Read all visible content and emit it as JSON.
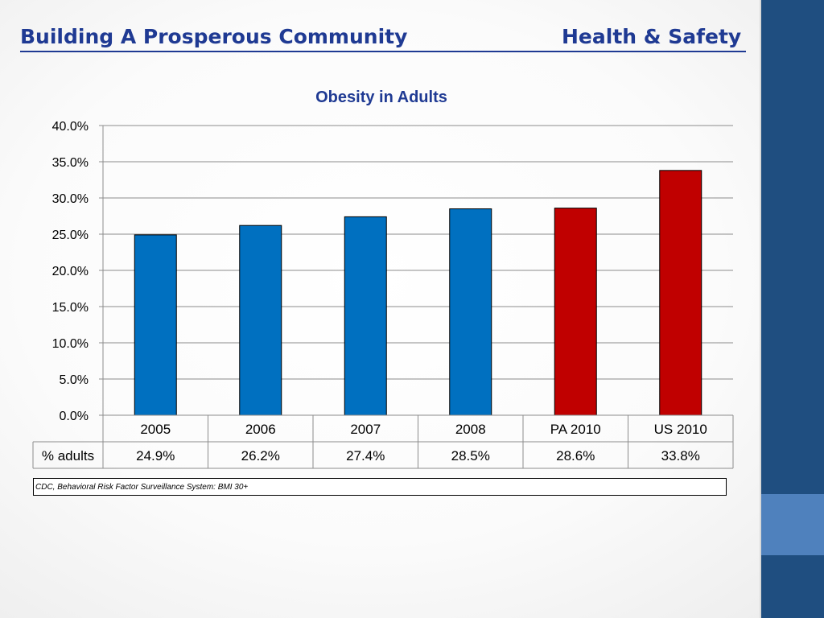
{
  "slide": {
    "title_left": "Building A Prosperous Community",
    "title_right": "Health & Safety"
  },
  "chart_data": {
    "type": "bar",
    "title": "Obesity in Adults",
    "categories": [
      "2005",
      "2006",
      "2007",
      "2008",
      "PA 2010",
      "US 2010"
    ],
    "series": [
      {
        "name": "% adults",
        "values": [
          24.9,
          26.2,
          27.4,
          28.5,
          28.6,
          33.8
        ],
        "value_labels": [
          "24.9%",
          "26.2%",
          "27.4%",
          "28.5%",
          "28.6%",
          "33.8%"
        ]
      }
    ],
    "bar_colors": [
      "#0070c0",
      "#0070c0",
      "#0070c0",
      "#0070c0",
      "#c00000",
      "#c00000"
    ],
    "ylim": [
      0,
      40
    ],
    "ytick_labels": [
      "0.0%",
      "5.0%",
      "10.0%",
      "15.0%",
      "20.0%",
      "25.0%",
      "30.0%",
      "35.0%",
      "40.0%"
    ],
    "grid": true,
    "data_table": true
  },
  "source": "CDC, Behavioral Risk Factor Surveillance System: BMI 30+"
}
